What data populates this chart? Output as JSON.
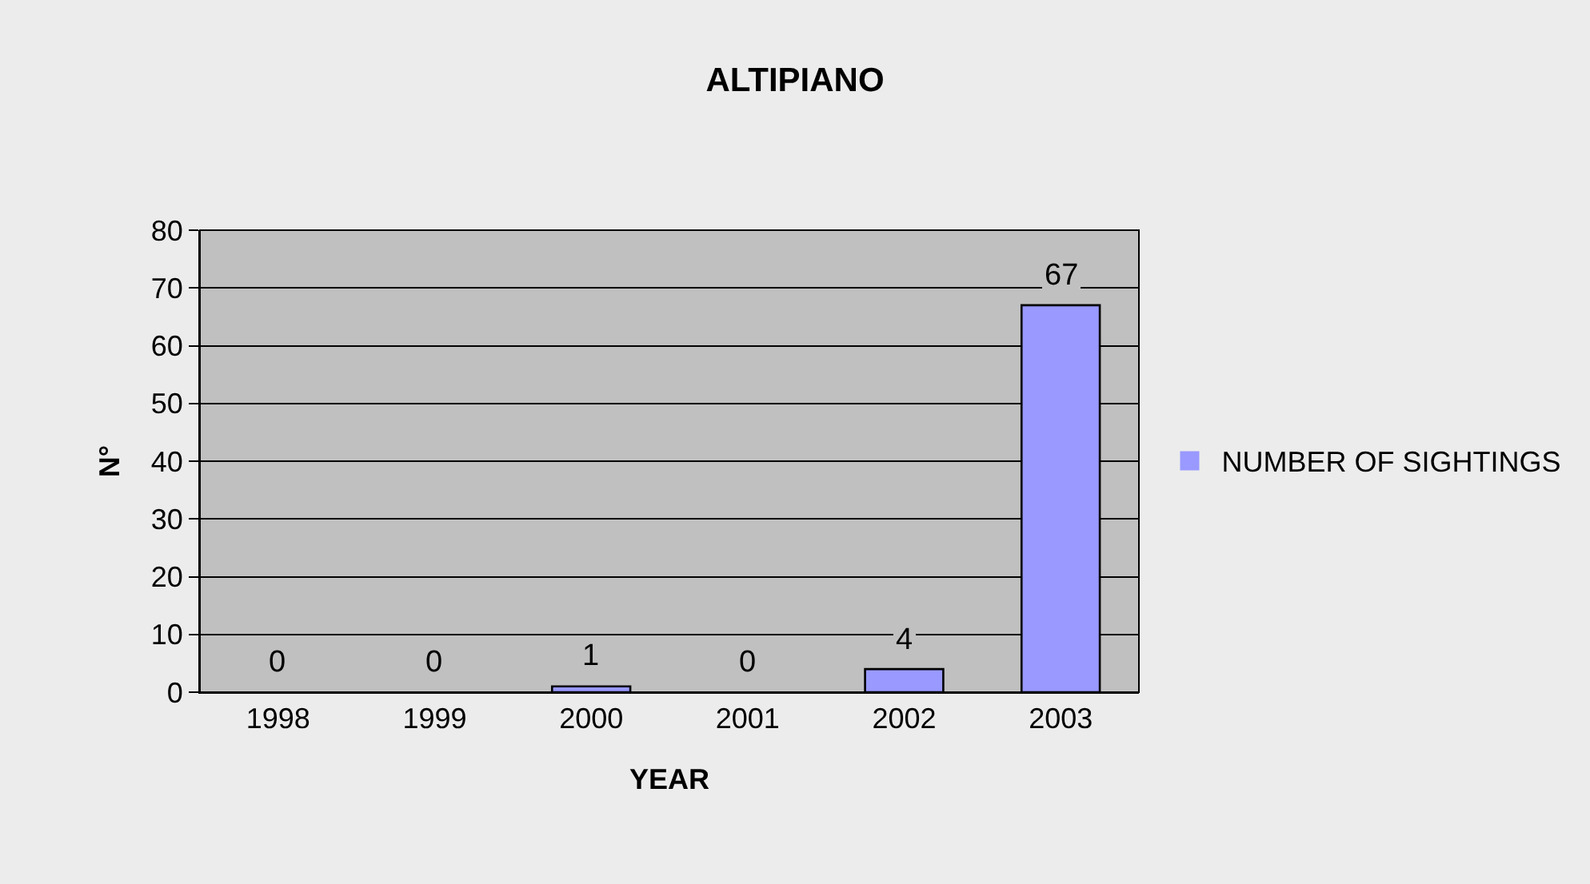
{
  "chart_data": {
    "type": "bar",
    "title": "ALTIPIANO",
    "xlabel": "YEAR",
    "ylabel": "N°",
    "categories": [
      "1998",
      "1999",
      "2000",
      "2001",
      "2002",
      "2003"
    ],
    "series": [
      {
        "name": "NUMBER OF SIGHTINGS",
        "color": "#9999ff",
        "values": [
          0,
          0,
          1,
          0,
          4,
          67
        ]
      }
    ],
    "ylim": [
      0,
      80
    ],
    "yticks": [
      0,
      10,
      20,
      30,
      40,
      50,
      60,
      70,
      80
    ],
    "grid": "y",
    "legend": "right",
    "data_labels": true
  }
}
